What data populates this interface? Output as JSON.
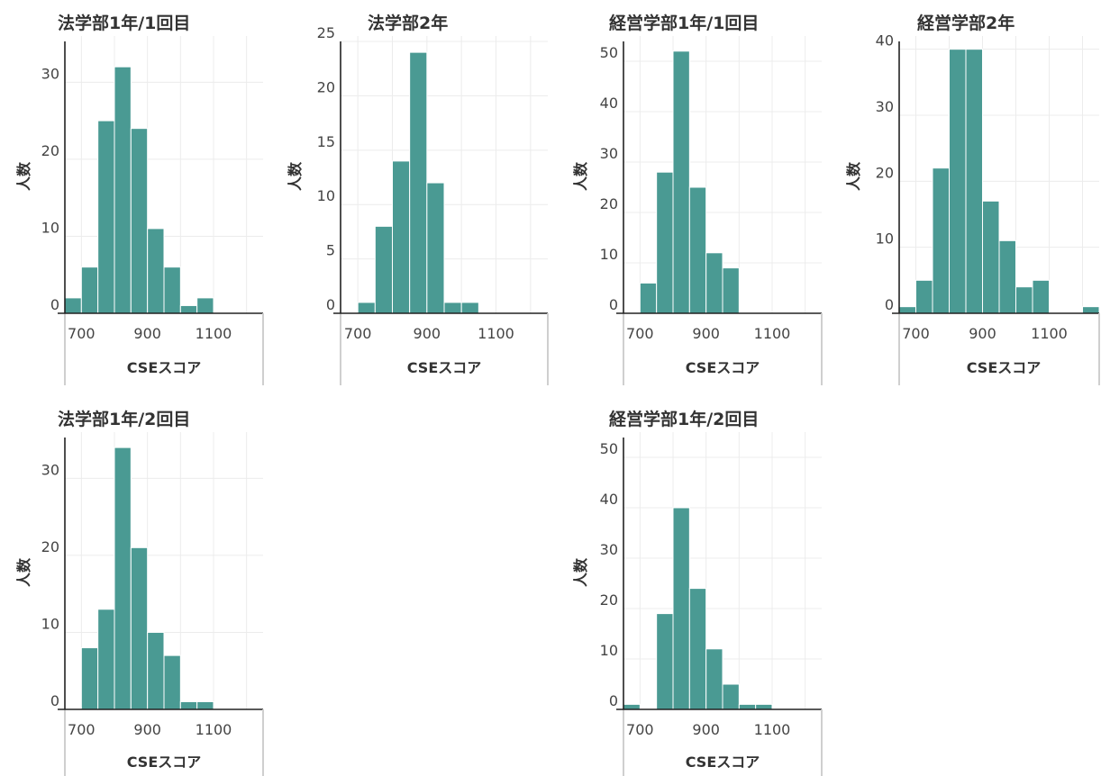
{
  "colors": {
    "bar": "#4a9a93",
    "grid": "#ececec",
    "axis": "#222222",
    "text": "#333333"
  },
  "chart_data": [
    {
      "type": "bar",
      "title": "法学部1年/1回目",
      "xlabel": "CSEスコア",
      "ylabel": "人数",
      "bin_width": 50,
      "bins": [
        650,
        700,
        750,
        800,
        850,
        900,
        950,
        1000,
        1050,
        1100,
        1150,
        1200,
        1250
      ],
      "values": [
        2,
        6,
        25,
        32,
        24,
        11,
        6,
        1,
        2,
        0,
        0,
        0,
        0
      ],
      "xlim": [
        650,
        1250
      ],
      "ylim": [
        0,
        36
      ],
      "xticks": [
        700,
        900,
        1100
      ],
      "yticks": [
        0,
        10,
        20,
        30
      ]
    },
    {
      "type": "bar",
      "title": "法学部2年",
      "xlabel": "CSEスコア",
      "ylabel": "人数",
      "bin_width": 50,
      "bins": [
        650,
        700,
        750,
        800,
        850,
        900,
        950,
        1000,
        1050,
        1100,
        1150,
        1200,
        1250
      ],
      "values": [
        0,
        1,
        8,
        14,
        24,
        12,
        1,
        1,
        0,
        0,
        0,
        0,
        0
      ],
      "xlim": [
        650,
        1250
      ],
      "ylim": [
        0,
        25.5
      ],
      "xticks": [
        700,
        900,
        1100
      ],
      "yticks": [
        0,
        5,
        10,
        15,
        20,
        25
      ]
    },
    {
      "type": "bar",
      "title": "経営学部1年/1回目",
      "xlabel": "CSEスコア",
      "ylabel": "人数",
      "bin_width": 50,
      "bins": [
        650,
        700,
        750,
        800,
        850,
        900,
        950,
        1000,
        1050,
        1100,
        1150,
        1200,
        1250
      ],
      "values": [
        0,
        6,
        28,
        52,
        25,
        12,
        9,
        0,
        0,
        0,
        0,
        0,
        0
      ],
      "xlim": [
        650,
        1250
      ],
      "ylim": [
        0,
        55
      ],
      "xticks": [
        700,
        900,
        1100
      ],
      "yticks": [
        0,
        10,
        20,
        30,
        40,
        50
      ]
    },
    {
      "type": "bar",
      "title": "経営学部2年",
      "xlabel": "CSEスコア",
      "ylabel": "人数",
      "bin_width": 50,
      "bins": [
        650,
        700,
        750,
        800,
        850,
        900,
        950,
        1000,
        1050,
        1100,
        1150,
        1200,
        1250
      ],
      "values": [
        1,
        5,
        22,
        40,
        40,
        17,
        11,
        4,
        5,
        0,
        0,
        1,
        0
      ],
      "xlim": [
        650,
        1250
      ],
      "ylim": [
        0,
        42
      ],
      "xticks": [
        700,
        900,
        1100
      ],
      "yticks": [
        0,
        10,
        20,
        30,
        40
      ]
    },
    {
      "type": "bar",
      "title": "法学部1年/2回目",
      "xlabel": "CSEスコア",
      "ylabel": "人数",
      "bin_width": 50,
      "bins": [
        650,
        700,
        750,
        800,
        850,
        900,
        950,
        1000,
        1050,
        1100,
        1150,
        1200,
        1250
      ],
      "values": [
        0,
        8,
        13,
        34,
        21,
        10,
        7,
        1,
        1,
        0,
        0,
        0,
        0
      ],
      "xlim": [
        650,
        1250
      ],
      "ylim": [
        0,
        36
      ],
      "xticks": [
        700,
        900,
        1100
      ],
      "yticks": [
        0,
        10,
        20,
        30
      ]
    },
    {
      "type": "bar",
      "title": "経営学部1年/2回目",
      "xlabel": "CSEスコア",
      "ylabel": "人数",
      "bin_width": 50,
      "bins": [
        650,
        700,
        750,
        800,
        850,
        900,
        950,
        1000,
        1050,
        1100,
        1150,
        1200,
        1250
      ],
      "values": [
        1,
        0,
        19,
        40,
        24,
        12,
        5,
        1,
        1,
        0,
        0,
        0,
        0
      ],
      "xlim": [
        650,
        1250
      ],
      "ylim": [
        0,
        55
      ],
      "xticks": [
        700,
        900,
        1100
      ],
      "yticks": [
        0,
        10,
        20,
        30,
        40,
        50
      ]
    }
  ]
}
